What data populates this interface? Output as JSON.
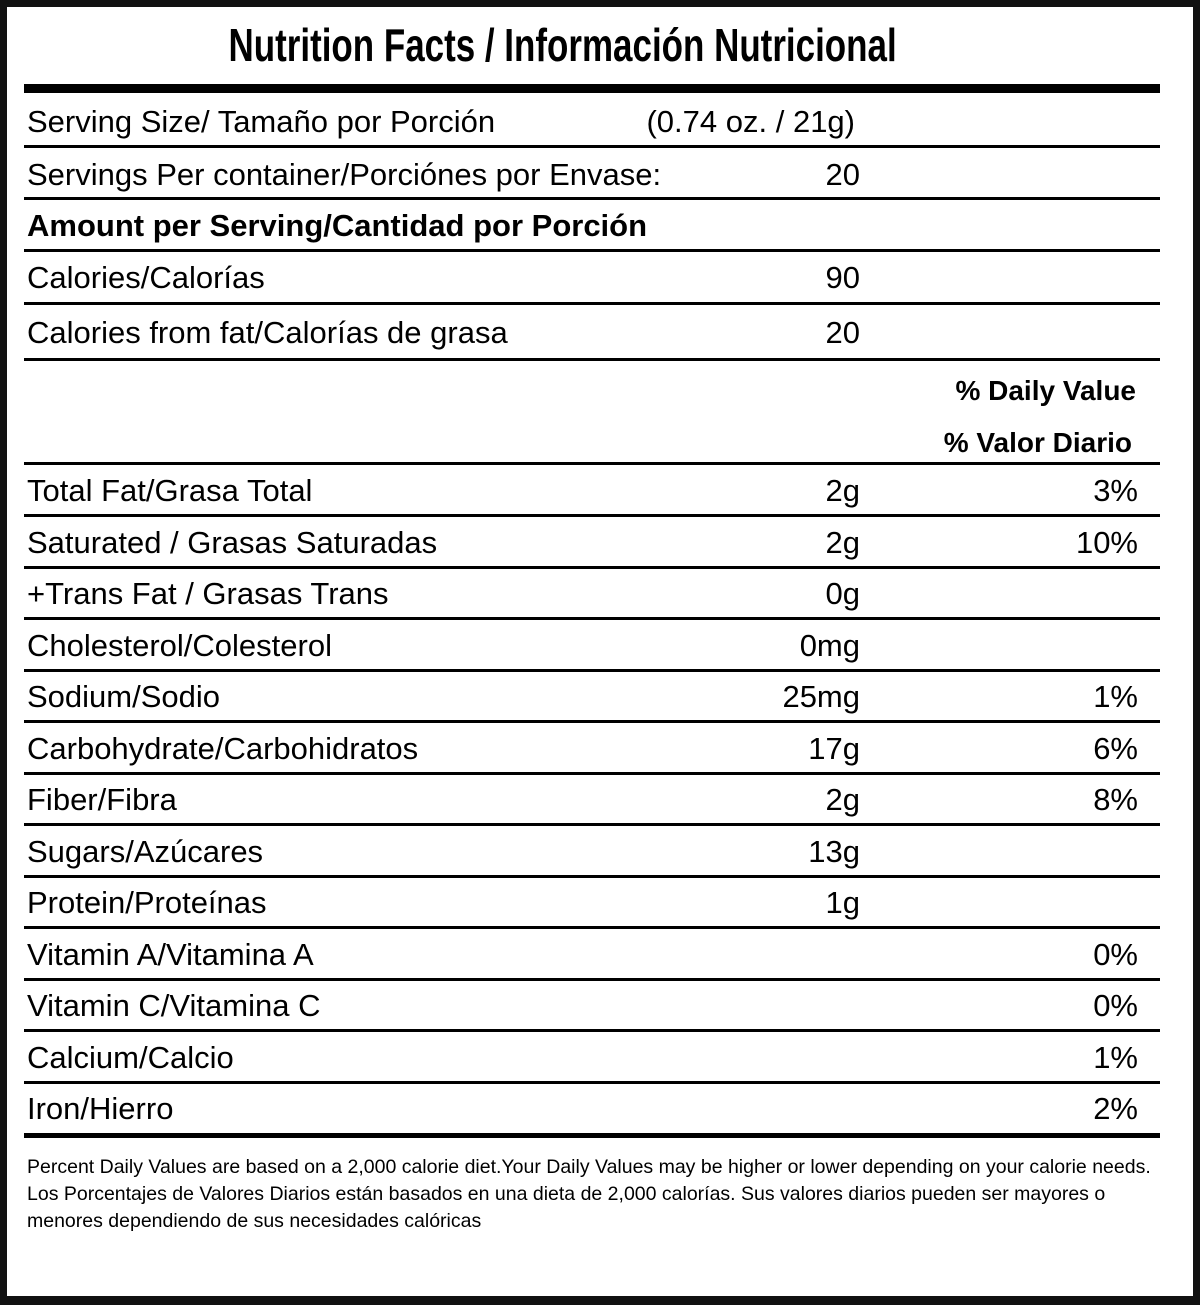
{
  "title": "Nutrition Facts / Información Nutricional",
  "serving_size": {
    "label": "Serving Size/ Tamaño por Porción",
    "value": "(0.74 oz. / 21g)"
  },
  "servings_per_container": {
    "label": "Servings Per container/Porciónes por Envase:",
    "value": "20"
  },
  "amount_header": "Amount per Serving/Cantidad por Porción",
  "calories": {
    "label": "Calories/Calorías",
    "value": "90"
  },
  "calories_from_fat": {
    "label": "Calories from fat/Calorías de grasa",
    "value": "20"
  },
  "daily_value_header": {
    "en": "% Daily Value",
    "es": "% Valor Diario"
  },
  "nutrients": [
    {
      "label": "Total Fat/Grasa Total",
      "amount": "2g",
      "dv": "3%"
    },
    {
      "label": " Saturated / Grasas Saturadas",
      "amount": "2g",
      "dv": "10%"
    },
    {
      "label": "+Trans Fat / Grasas Trans",
      "amount": "0g",
      "dv": ""
    },
    {
      "label": "Cholesterol/Colesterol",
      "amount": "0mg",
      "dv": ""
    },
    {
      "label": "Sodium/Sodio",
      "amount": "25mg",
      "dv": "1%"
    },
    {
      "label": "Carbohydrate/Carbohidratos",
      "amount": "17g",
      "dv": "6%"
    },
    {
      "label": "Fiber/Fibra",
      "amount": "2g",
      "dv": "8%"
    },
    {
      "label": "Sugars/Azúcares",
      "amount": "13g",
      "dv": ""
    },
    {
      "label": "Protein/Proteínas",
      "amount": "1g",
      "dv": ""
    },
    {
      "label": "Vitamin A/Vitamina A",
      "amount": "",
      "dv": "0%"
    },
    {
      "label": "Vitamin C/Vitamina C",
      "amount": "",
      "dv": "0%"
    },
    {
      "label": "Calcium/Calcio",
      "amount": "",
      "dv": "1%"
    },
    {
      "label": "Iron/Hierro",
      "amount": "",
      "dv": "2%"
    }
  ],
  "footnote": {
    "en": "Percent Daily Values are based on a 2,000 calorie diet.Your Daily Values may be higher or lower depending on your calorie needs.",
    "es": "Los Porcentajes de Valores Diarios están basados en una dieta de 2,000 calorías. Sus valores diarios pueden ser mayores o menores dependiendo de sus necesidades calóricas"
  }
}
